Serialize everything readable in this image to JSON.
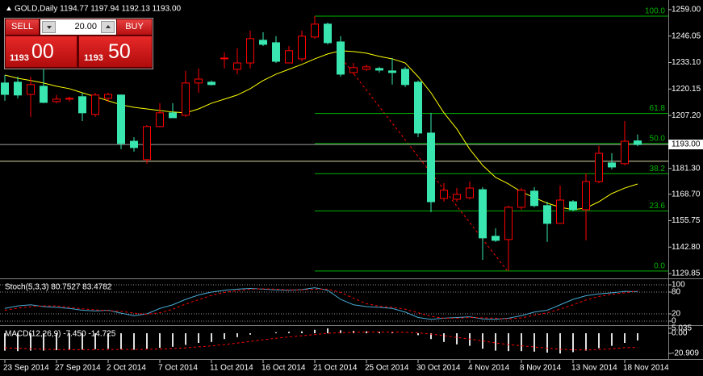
{
  "trade_panel": {
    "sell": "SELL",
    "buy": "BUY",
    "lots": "20.00",
    "bid_small": "1193",
    "bid_big": "00",
    "ask_small": "1193",
    "ask_big": "50"
  },
  "chart_data": [
    {
      "type": "candlestick",
      "title": "GOLD,Daily  1194.77 1197.94 1192.13 1193.00",
      "categories": [
        "23 Sep 2014",
        null,
        null,
        null,
        "27 Sep 2014",
        null,
        null,
        null,
        "2 Oct 2014",
        null,
        null,
        null,
        "7 Oct 2014",
        null,
        null,
        null,
        "11 Oct 2014",
        null,
        null,
        null,
        "16 Oct 2014",
        null,
        null,
        null,
        "21 Oct 2014",
        null,
        null,
        null,
        "25 Oct 2014",
        null,
        null,
        null,
        "30 Oct 2014",
        null,
        null,
        null,
        "4 Nov 2014",
        null,
        null,
        null,
        "8 Nov 2014",
        null,
        null,
        null,
        "13 Nov 2014",
        null,
        null,
        null,
        "18 Nov 2014",
        null
      ],
      "open": [
        1223.1,
        1223.5,
        1217.5,
        1221.5,
        1214.0,
        1215.2,
        1216.4,
        1207.7,
        1215.6,
        1217.2,
        1194.6,
        1185.6,
        1201.8,
        1208.5,
        1207.3,
        1223.1,
        1223.5,
        1234.9,
        1229.8,
        1232.9,
        1244.0,
        1242.8,
        1232.9,
        1234.9,
        1245.6,
        1251.9,
        1243.2,
        1228.2,
        1229.8,
        1230.2,
        1229.0,
        1229.8,
        1223.5,
        1198.6,
        1166.6,
        1166.2,
        1167.0,
        1170.9,
        1148.1,
        1146.5,
        1162.3,
        1170.2,
        1163.1,
        1154.4,
        1165.0,
        1161.1,
        1174.9,
        1184.0,
        1183.6,
        1194.77
      ],
      "high": [
        1227.0,
        1226.2,
        1226.2,
        1230.2,
        1217.2,
        1216.4,
        1218.3,
        1218.3,
        1218.3,
        1217.5,
        1196.6,
        1202.5,
        1213.2,
        1213.2,
        1229.0,
        1230.2,
        1224.3,
        1238.1,
        1240.0,
        1248.7,
        1247.9,
        1246.0,
        1241.2,
        1248.7,
        1255.8,
        1252.7,
        1246.0,
        1232.9,
        1232.1,
        1231.0,
        1235.3,
        1231.0,
        1224.3,
        1208.5,
        1174.1,
        1171.7,
        1174.9,
        1172.1,
        1152.0,
        1163.1,
        1171.7,
        1172.1,
        1165.0,
        1172.9,
        1165.8,
        1178.9,
        1192.3,
        1188.7,
        1204.5,
        1197.94
      ],
      "low": [
        1214.4,
        1215.6,
        1206.5,
        1213.2,
        1213.2,
        1214.0,
        1204.5,
        1206.5,
        1213.6,
        1190.7,
        1189.5,
        1183.6,
        1201.4,
        1206.1,
        1206.5,
        1218.3,
        1221.9,
        1230.2,
        1227.4,
        1230.2,
        1241.2,
        1232.9,
        1232.9,
        1233.7,
        1244.8,
        1242.0,
        1226.2,
        1227.4,
        1229.0,
        1228.2,
        1222.3,
        1221.1,
        1196.6,
        1159.9,
        1165.0,
        1165.0,
        1166.2,
        1136.6,
        1145.3,
        1131.1,
        1161.1,
        1162.3,
        1145.3,
        1154.4,
        1160.3,
        1146.1,
        1174.1,
        1180.8,
        1182.8,
        1192.13
      ],
      "close": [
        1217.5,
        1217.2,
        1222.3,
        1213.6,
        1215.2,
        1215.6,
        1208.5,
        1217.2,
        1217.5,
        1193.5,
        1191.5,
        1201.8,
        1208.5,
        1206.1,
        1223.1,
        1225.0,
        1222.3,
        1235.3,
        1232.9,
        1244.8,
        1242.0,
        1233.7,
        1238.9,
        1246.0,
        1251.9,
        1242.8,
        1227.4,
        1230.6,
        1231.0,
        1229.4,
        1228.2,
        1222.3,
        1198.6,
        1165.0,
        1170.6,
        1168.6,
        1171.7,
        1147.3,
        1146.1,
        1162.3,
        1170.6,
        1163.1,
        1154.4,
        1165.8,
        1161.1,
        1174.9,
        1188.7,
        1182.0,
        1194.6,
        1193.0
      ],
      "up_color": "#ff0000",
      "down_color": "#3ae6b0",
      "overlays": [
        {
          "color": "#ffff00",
          "values": [
            1227.0,
            1225.4,
            1224.3,
            1223.1,
            1221.5,
            1220.3,
            1218.3,
            1216.4,
            1214.4,
            1212.4,
            1211.2,
            1210.4,
            1209.6,
            1208.9,
            1208.5,
            1210.4,
            1213.2,
            1215.2,
            1217.2,
            1220.3,
            1224.3,
            1227.4,
            1229.8,
            1232.2,
            1234.9,
            1237.3,
            1238.9,
            1238.5,
            1237.7,
            1236.1,
            1234.9,
            1232.9,
            1226.2,
            1218.3,
            1208.5,
            1200.6,
            1190.7,
            1182.8,
            1176.9,
            1173.7,
            1169.8,
            1167.0,
            1164.3,
            1162.3,
            1161.1,
            1161.9,
            1165.0,
            1169.0,
            1171.7,
            1173.7
          ]
        }
      ],
      "fib_color": "#00b400",
      "fib_levels": [
        {
          "value": 1255.8,
          "label": "100.0"
        },
        {
          "value": 1208.2,
          "label": "61.8"
        },
        {
          "value": 1193.5,
          "label": "50.0"
        },
        {
          "value": 1178.7,
          "label": "38.2"
        },
        {
          "value": 1160.5,
          "label": "23.6"
        },
        {
          "value": 1131.1,
          "label": "0.0"
        }
      ],
      "hlines": [
        {
          "value": 1184.8,
          "color": "#d8d8a8"
        }
      ],
      "bid": {
        "value": 1193.0,
        "label": "1193.00"
      },
      "ylim": [
        1127.5,
        1263.7
      ],
      "yticks": [
        {
          "value": 1259.0,
          "label": "1259.00"
        },
        {
          "value": 1246.05,
          "label": "1246.05"
        },
        {
          "value": 1233.1,
          "label": "1233.10"
        },
        {
          "value": 1220.15,
          "label": "1220.15"
        },
        {
          "value": 1207.2,
          "label": "1207.20"
        },
        {
          "value": 1181.3,
          "label": "1181.30"
        },
        {
          "value": 1168.7,
          "label": "1168.70"
        },
        {
          "value": 1155.75,
          "label": "1155.75"
        },
        {
          "value": 1142.8,
          "label": "1142.80"
        },
        {
          "value": 1129.85,
          "label": "1129.85"
        }
      ]
    },
    {
      "type": "line",
      "title": "Stoch(5,3,3) 80.7527 83.4782",
      "series": [
        {
          "color": "#48a8d0",
          "line_style": "solid",
          "values": [
            35,
            42,
            45,
            40,
            38,
            35,
            30,
            28,
            30,
            22,
            15,
            20,
            35,
            45,
            60,
            72,
            80,
            85,
            88,
            90,
            88,
            86,
            85,
            87,
            92,
            85,
            60,
            45,
            40,
            38,
            35,
            25,
            10,
            5,
            8,
            10,
            12,
            6,
            5,
            8,
            15,
            25,
            30,
            45,
            60,
            70,
            75,
            78,
            82,
            80.7527
          ]
        },
        {
          "color": "#ff0000",
          "line_style": "dashed",
          "values": [
            30,
            36,
            40,
            42,
            42,
            38,
            34,
            31,
            29,
            27,
            22,
            19,
            23,
            33,
            47,
            59,
            71,
            79,
            84,
            88,
            89,
            88,
            86,
            86,
            88,
            88,
            79,
            63,
            48,
            41,
            38,
            33,
            23,
            13,
            8,
            8,
            10,
            9,
            8,
            6,
            9,
            16,
            23,
            33,
            45,
            58,
            68,
            74,
            78,
            83.4782
          ]
        }
      ],
      "ylim": [
        -13.3,
        113.3
      ],
      "yticks": [
        0,
        20,
        80,
        100
      ],
      "grid": true
    },
    {
      "type": "bar",
      "title": "MACD(12,26,9) -7.450 -14.725",
      "color": "#e0e0e0",
      "values": [
        -18,
        -18.5,
        -18,
        -18,
        -17.5,
        -17,
        -17,
        -16.5,
        -16,
        -16.5,
        -17,
        -16,
        -15,
        -14,
        -12,
        -10,
        -9,
        -6,
        -4,
        -1.5,
        0,
        1,
        1.5,
        2,
        3.5,
        5.035,
        3,
        2.5,
        2,
        1.5,
        1,
        0,
        -2,
        -6,
        -9,
        -11.5,
        -13,
        -16,
        -18,
        -18.5,
        -18.5,
        -19,
        -20,
        -20.909,
        -19.5,
        -18,
        -15.5,
        -13,
        -10,
        -7.45
      ],
      "signal": {
        "color": "#ff0000",
        "line_style": "dashed",
        "values": [
          -15,
          -15.5,
          -16,
          -16.5,
          -16.8,
          -17,
          -17,
          -17,
          -16.8,
          -16.7,
          -16.7,
          -16.6,
          -16.3,
          -15.9,
          -15.1,
          -14.1,
          -13.1,
          -11.7,
          -10.2,
          -8.5,
          -6.8,
          -5.2,
          -3.8,
          -2.6,
          -1.4,
          0,
          0.6,
          1,
          1.2,
          1.3,
          1.2,
          1,
          0.4,
          -0.9,
          -2.5,
          -4.3,
          -6,
          -8,
          -10,
          -11.7,
          -13,
          -14.2,
          -15.4,
          -16.5,
          -17.1,
          -17.3,
          -16.9,
          -16.1,
          -14.9,
          -14.725
        ]
      },
      "ylim": [
        -26.67,
        6.67
      ],
      "yticks": [
        {
          "value": 5.035,
          "label": "5.035"
        },
        {
          "value": 0,
          "label": "0.00"
        },
        {
          "value": -20.909,
          "label": "-20.909"
        }
      ]
    }
  ]
}
